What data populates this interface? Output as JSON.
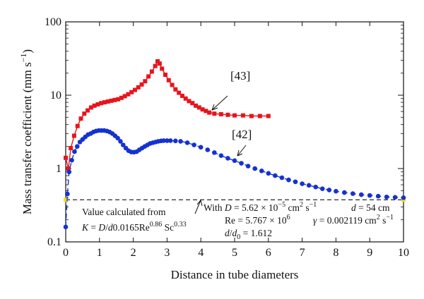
{
  "chart_data": {
    "type": "scatter",
    "xlabel": "Distance in tube diameters",
    "ylabel": "Mass transfer coefficient (mm s",
    "ylabel_sup": "−1",
    "ylabel_close": ")",
    "xlim": [
      0,
      10
    ],
    "ylim": [
      0.1,
      100
    ],
    "yscale": "log",
    "grid": false,
    "xticks": [
      "0",
      "1",
      "2",
      "3",
      "4",
      "5",
      "6",
      "7",
      "8",
      "9",
      "10"
    ],
    "yticks": [
      "0.1",
      "1",
      "10",
      "100"
    ],
    "series": [
      {
        "color": "#e8141c",
        "marker": "square",
        "line": "solid",
        "label": "[43]",
        "points": [
          [
            0.0,
            1.4
          ],
          [
            0.08,
            1.0
          ],
          [
            0.15,
            1.9
          ],
          [
            0.25,
            2.8
          ],
          [
            0.35,
            3.8
          ],
          [
            0.45,
            4.8
          ],
          [
            0.55,
            5.6
          ],
          [
            0.65,
            6.2
          ],
          [
            0.75,
            6.8
          ],
          [
            0.85,
            7.2
          ],
          [
            0.95,
            7.5
          ],
          [
            1.05,
            7.8
          ],
          [
            1.15,
            8.0
          ],
          [
            1.25,
            8.2
          ],
          [
            1.35,
            8.4
          ],
          [
            1.45,
            8.6
          ],
          [
            1.55,
            8.8
          ],
          [
            1.65,
            9.2
          ],
          [
            1.75,
            9.7
          ],
          [
            1.85,
            10.3
          ],
          [
            1.95,
            11.0
          ],
          [
            2.05,
            11.8
          ],
          [
            2.15,
            12.8
          ],
          [
            2.25,
            14.0
          ],
          [
            2.35,
            15.5
          ],
          [
            2.45,
            18.0
          ],
          [
            2.55,
            21.0
          ],
          [
            2.65,
            25.0
          ],
          [
            2.72,
            29.0
          ],
          [
            2.78,
            27.0
          ],
          [
            2.85,
            23.0
          ],
          [
            2.95,
            19.0
          ],
          [
            3.05,
            16.0
          ],
          [
            3.15,
            13.8
          ],
          [
            3.25,
            12.0
          ],
          [
            3.35,
            10.8
          ],
          [
            3.45,
            9.8
          ],
          [
            3.55,
            9.0
          ],
          [
            3.65,
            8.3
          ],
          [
            3.75,
            7.8
          ],
          [
            3.85,
            7.2
          ],
          [
            3.95,
            6.8
          ],
          [
            4.05,
            6.4
          ],
          [
            4.15,
            6.1
          ],
          [
            4.25,
            5.8
          ],
          [
            4.4,
            5.6
          ],
          [
            4.6,
            5.5
          ],
          [
            4.8,
            5.4
          ],
          [
            5.0,
            5.3
          ],
          [
            5.25,
            5.3
          ],
          [
            5.5,
            5.2
          ],
          [
            5.75,
            5.2
          ],
          [
            6.0,
            5.2
          ]
        ]
      },
      {
        "color": "#1432d2",
        "marker": "circle",
        "line": "dashed",
        "label": "[42]",
        "points": [
          [
            0.0,
            0.16
          ],
          [
            0.05,
            0.45
          ],
          [
            0.1,
            0.9
          ],
          [
            0.18,
            1.3
          ],
          [
            0.26,
            1.7
          ],
          [
            0.34,
            2.0
          ],
          [
            0.42,
            2.3
          ],
          [
            0.5,
            2.5
          ],
          [
            0.58,
            2.7
          ],
          [
            0.66,
            2.9
          ],
          [
            0.74,
            3.0
          ],
          [
            0.82,
            3.15
          ],
          [
            0.9,
            3.25
          ],
          [
            0.98,
            3.3
          ],
          [
            1.06,
            3.3
          ],
          [
            1.14,
            3.3
          ],
          [
            1.22,
            3.25
          ],
          [
            1.3,
            3.15
          ],
          [
            1.38,
            3.0
          ],
          [
            1.46,
            2.8
          ],
          [
            1.54,
            2.6
          ],
          [
            1.62,
            2.35
          ],
          [
            1.7,
            2.1
          ],
          [
            1.78,
            1.9
          ],
          [
            1.86,
            1.75
          ],
          [
            1.94,
            1.68
          ],
          [
            2.02,
            1.67
          ],
          [
            2.1,
            1.7
          ],
          [
            2.18,
            1.8
          ],
          [
            2.26,
            1.9
          ],
          [
            2.34,
            2.0
          ],
          [
            2.42,
            2.1
          ],
          [
            2.5,
            2.2
          ],
          [
            2.58,
            2.25
          ],
          [
            2.66,
            2.3
          ],
          [
            2.74,
            2.35
          ],
          [
            2.82,
            2.38
          ],
          [
            2.9,
            2.4
          ],
          [
            3.0,
            2.4
          ],
          [
            3.1,
            2.4
          ],
          [
            3.25,
            2.38
          ],
          [
            3.4,
            2.35
          ],
          [
            3.6,
            2.25
          ],
          [
            3.8,
            2.1
          ],
          [
            4.0,
            1.95
          ],
          [
            4.2,
            1.8
          ],
          [
            4.4,
            1.65
          ],
          [
            4.6,
            1.5
          ],
          [
            4.8,
            1.38
          ],
          [
            5.0,
            1.28
          ],
          [
            5.2,
            1.18
          ],
          [
            5.4,
            1.08
          ],
          [
            5.6,
            1.0
          ],
          [
            5.8,
            0.93
          ],
          [
            6.0,
            0.86
          ],
          [
            6.2,
            0.8
          ],
          [
            6.4,
            0.75
          ],
          [
            6.6,
            0.7
          ],
          [
            6.8,
            0.66
          ],
          [
            7.0,
            0.62
          ],
          [
            7.2,
            0.59
          ],
          [
            7.4,
            0.56
          ],
          [
            7.6,
            0.53
          ],
          [
            7.8,
            0.51
          ],
          [
            8.0,
            0.49
          ],
          [
            8.25,
            0.47
          ],
          [
            8.5,
            0.455
          ],
          [
            8.75,
            0.44
          ],
          [
            9.0,
            0.43
          ],
          [
            9.25,
            0.42
          ],
          [
            9.5,
            0.41
          ],
          [
            9.75,
            0.405
          ],
          [
            10.0,
            0.4
          ]
        ]
      }
    ],
    "reference_line": {
      "y": 0.375,
      "style": "dashed",
      "color": "#111111",
      "end_marker_color": "#f5e11a"
    },
    "labels": {
      "ref43": "[43]",
      "ref42": "[42]"
    },
    "annotations": {
      "calc_line1": "Value calculated from",
      "calc_line2_k": "K",
      "calc_line2_eq": " = ",
      "calc_line2_d": "D",
      "calc_line2_div": "/",
      "calc_line2_d2": "d",
      "calc_line2_coef": "0.0165Re",
      "calc_line2_exp1": "0.86",
      "calc_line2_sc": " Sc",
      "calc_line2_exp2": "0.33",
      "with_line1_a": "With ",
      "with_line1_D": "D",
      "with_line1_val": " = 5.62 × 10",
      "with_line1_exp": "−5",
      "with_line1_unit": " cm",
      "with_line1_unit_sup": "2",
      "with_line1_unit2": " s",
      "with_line1_unit2_sup": "−1",
      "with_d_label": "d",
      "with_d_val": " = 54 cm",
      "re_line": "Re = 5.767 × 10",
      "re_exp": "6",
      "gamma_sym": "γ",
      "gamma_val": " = 0.002119 cm",
      "gamma_sup": "2",
      "gamma_unit": " s",
      "gamma_unit_sup": "−1",
      "dd0_d": "d",
      "dd0_slash": "/",
      "dd0_d0": "d",
      "dd0_sub": "0",
      "dd0_val": " = 1.612"
    }
  }
}
